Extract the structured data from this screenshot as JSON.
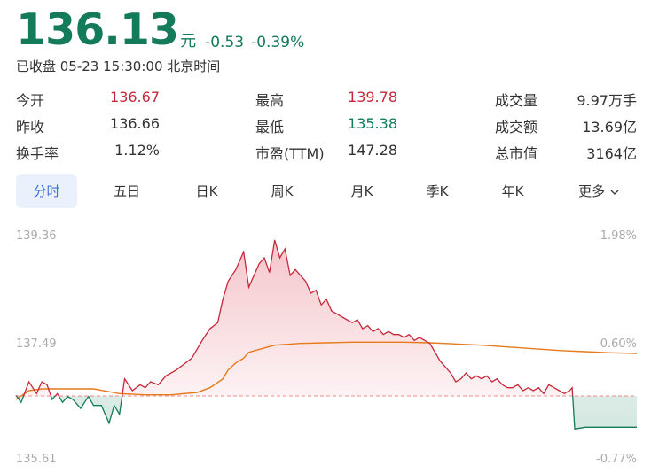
{
  "quote": {
    "price": "136.13",
    "unit": "元",
    "change": "-0.53",
    "change_pct": "-0.39%",
    "status": "已收盘 05-23 15:30:00 北京时间"
  },
  "stats": {
    "open": {
      "label": "今开",
      "value": "136.67"
    },
    "prev_close": {
      "label": "昨收",
      "value": "136.66"
    },
    "turnover_rate": {
      "label": "换手率",
      "value": "1.12%"
    },
    "high": {
      "label": "最高",
      "value": "139.78"
    },
    "low": {
      "label": "最低",
      "value": "135.38"
    },
    "pe": {
      "label": "市盈(TTM)",
      "value": "147.28"
    },
    "volume": {
      "label": "成交量",
      "value": "9.97万手"
    },
    "amount": {
      "label": "成交额",
      "value": "13.69亿"
    },
    "market_cap": {
      "label": "总市值",
      "value": "3164亿"
    }
  },
  "tabs": [
    {
      "label": "分时",
      "active": true
    },
    {
      "label": "五日"
    },
    {
      "label": "日K"
    },
    {
      "label": "周K"
    },
    {
      "label": "月K"
    },
    {
      "label": "季K"
    },
    {
      "label": "年K"
    },
    {
      "label": "更多"
    }
  ],
  "colors": {
    "up": "#c6283a",
    "down": "#137a5a",
    "avg_line": "#e67a1c",
    "ref_line": "#ef8a8a",
    "active_tab": "#3a6fd8"
  },
  "chart_data": {
    "type": "line",
    "title": "",
    "xlabel": "",
    "ylabel": "",
    "reference_close": 136.66,
    "ylim": [
      135.61,
      139.36
    ],
    "y_tick_labels": [
      "139.36",
      "137.49",
      "135.61"
    ],
    "pct_tick_labels": [
      "1.98%",
      "0.60%",
      "-0.77%"
    ],
    "grid": false,
    "x_index_range": [
      0,
      240
    ],
    "series": [
      {
        "color_rule": "red above reference close, green below",
        "x": [
          0,
          2,
          5,
          8,
          10,
          12,
          14,
          16,
          18,
          20,
          22,
          25,
          28,
          30,
          33,
          36,
          38,
          40,
          42,
          45,
          48,
          50,
          52,
          55,
          58,
          62,
          65,
          68,
          72,
          75,
          78,
          80,
          82,
          85,
          88,
          90,
          92,
          94,
          96,
          98,
          100,
          102,
          104,
          106,
          108,
          110,
          112,
          114,
          116,
          118,
          120,
          122,
          124,
          126,
          128,
          130,
          132,
          134,
          136,
          138,
          140,
          142,
          144,
          146,
          148,
          150,
          152,
          154,
          156,
          158,
          160,
          162,
          164,
          166,
          168,
          170,
          172,
          174,
          176,
          178,
          180,
          182,
          184,
          186,
          188,
          190,
          192,
          194,
          196,
          198,
          200,
          202,
          204,
          206,
          208,
          210,
          212,
          214,
          215,
          216,
          220,
          225,
          230,
          235,
          240
        ],
        "values": [
          136.67,
          136.55,
          136.9,
          136.7,
          136.9,
          136.85,
          136.6,
          136.7,
          136.55,
          136.65,
          136.6,
          136.45,
          136.65,
          136.5,
          136.5,
          136.2,
          136.5,
          136.35,
          136.95,
          136.75,
          136.85,
          136.8,
          136.9,
          136.85,
          137.0,
          137.1,
          137.2,
          137.3,
          137.6,
          137.8,
          137.9,
          138.3,
          138.6,
          138.8,
          139.1,
          138.5,
          138.7,
          138.9,
          139.0,
          138.75,
          139.3,
          139.0,
          139.15,
          138.7,
          138.8,
          138.7,
          138.6,
          138.4,
          138.45,
          138.2,
          138.3,
          138.1,
          138.05,
          138.0,
          137.95,
          137.9,
          137.95,
          137.8,
          137.85,
          137.75,
          137.8,
          137.7,
          137.75,
          137.7,
          137.7,
          137.65,
          137.7,
          137.6,
          137.65,
          137.6,
          137.55,
          137.4,
          137.25,
          137.15,
          137.05,
          136.9,
          136.95,
          137.05,
          136.95,
          137.0,
          136.95,
          137.0,
          136.9,
          136.95,
          136.85,
          136.8,
          136.8,
          136.85,
          136.75,
          136.8,
          136.75,
          136.8,
          136.7,
          136.85,
          136.8,
          136.75,
          136.7,
          136.75,
          136.8,
          136.1,
          136.13,
          136.13,
          136.13,
          136.13,
          136.13
        ]
      },
      {
        "name": "",
        "color": "#e67a1c",
        "x": [
          0,
          5,
          10,
          20,
          30,
          40,
          50,
          60,
          70,
          75,
          80,
          82,
          85,
          88,
          90,
          95,
          100,
          110,
          120,
          130,
          140,
          150,
          160,
          170,
          180,
          190,
          200,
          210,
          220,
          230,
          240
        ],
        "values": [
          136.6,
          136.75,
          136.78,
          136.78,
          136.78,
          136.7,
          136.68,
          136.68,
          136.72,
          136.8,
          136.95,
          137.1,
          137.22,
          137.3,
          137.4,
          137.46,
          137.52,
          137.55,
          137.56,
          137.57,
          137.57,
          137.57,
          137.56,
          137.54,
          137.52,
          137.49,
          137.46,
          137.43,
          137.41,
          137.39,
          137.38
        ]
      }
    ]
  }
}
